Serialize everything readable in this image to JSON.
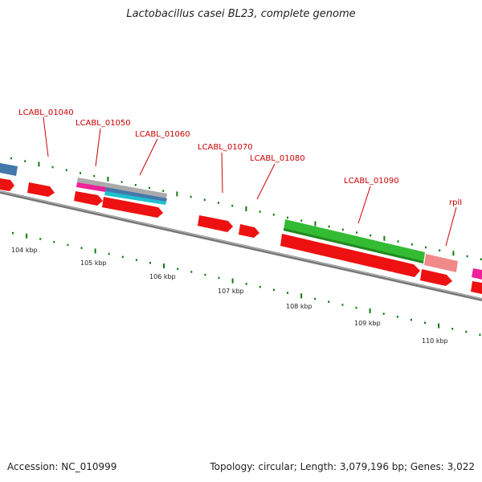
{
  "title": "Lactobacillus casei BL23, complete genome",
  "accession": "Accession: NC_010999",
  "summary": "Topology: circular; Length: 3,079,196 bp; Genes: 3,022",
  "colors": {
    "cds": "#ee1111",
    "gene": "#33bb33",
    "rrna": "#f08a8a",
    "trna": "#1fbfcf",
    "misc": "#ee2299",
    "repeat": "#4477aa",
    "grey": "#aaaaaa",
    "backbone": "#777777",
    "tick": "#117711",
    "label": "#cc0000"
  },
  "scale_ticks": [
    "104 kbp",
    "105 kbp",
    "106 kbp",
    "107 kbp",
    "108 kbp",
    "109 kbp",
    "110 kbp"
  ],
  "gene_labels": [
    "LCABL_01040",
    "LCABL_01050",
    "LCABL_01060",
    "LCABL_01070",
    "LCABL_01080",
    "LCABL_01090",
    "rplI"
  ]
}
